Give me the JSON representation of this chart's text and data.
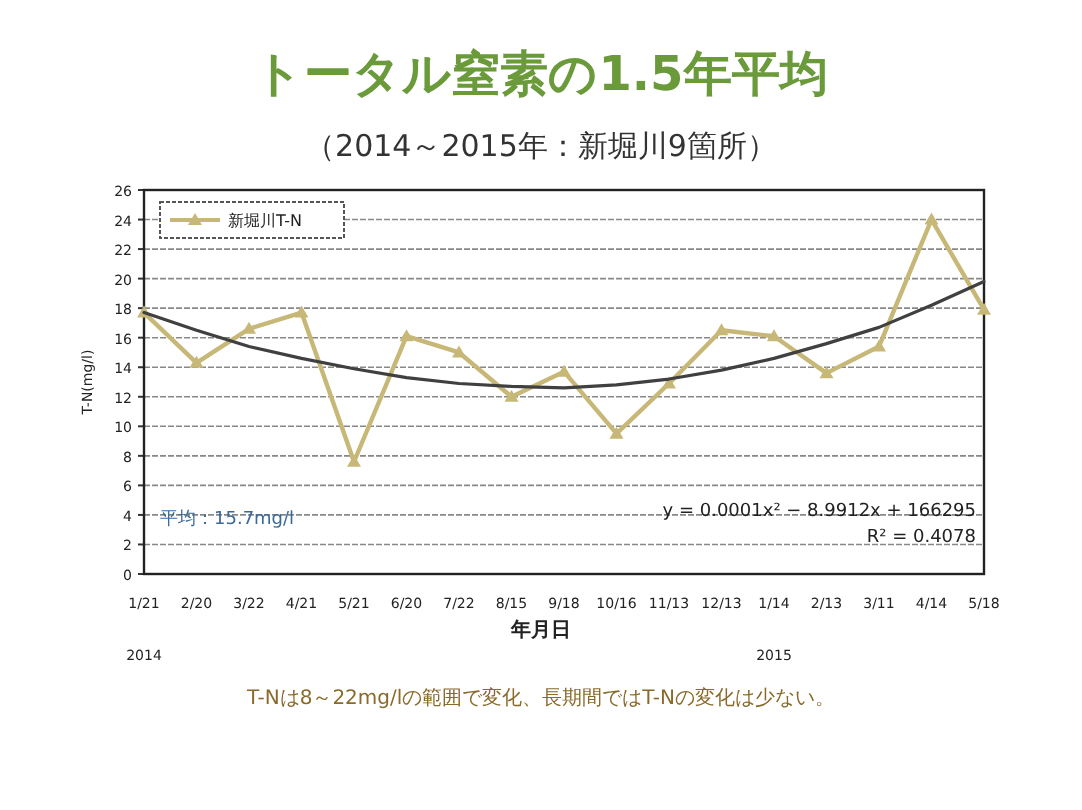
{
  "chart_data": {
    "type": "line",
    "title": "トータル窒素の1.5年平均",
    "subtitle": "（2014～2015年：新堀川9箇所）",
    "xlabel": "年月日",
    "ylabel": "T-N(mg/l)",
    "categories": [
      "1/21",
      "2/20",
      "3/22",
      "4/21",
      "5/21",
      "6/20",
      "7/22",
      "8/15",
      "9/18",
      "10/16",
      "11/13",
      "12/13",
      "1/14",
      "2/13",
      "3/11",
      "4/14",
      "5/18"
    ],
    "series": [
      {
        "name": "新堀川T-N",
        "color": "#c8b878",
        "marker": "triangle",
        "values": [
          17.7,
          14.3,
          16.6,
          17.7,
          7.6,
          16.1,
          15.0,
          12.0,
          13.7,
          9.5,
          12.9,
          16.5,
          16.1,
          13.6,
          15.4,
          24.0,
          17.9
        ]
      },
      {
        "color": "#404040",
        "marker": "none",
        "values": [
          17.7,
          16.5,
          15.4,
          14.6,
          13.9,
          13.3,
          12.9,
          12.7,
          12.6,
          12.8,
          13.2,
          13.8,
          14.6,
          15.6,
          16.7,
          18.2,
          19.8
        ]
      }
    ],
    "ylim": [
      0,
      26
    ],
    "yticks": [
      0,
      2,
      4,
      6,
      8,
      10,
      12,
      14,
      16,
      18,
      20,
      22,
      24,
      26
    ],
    "grid": "y",
    "legend": "top left",
    "annotations": [
      "平均：15.7mg/l",
      "y = 0.0001x² − 8.9912x + 166295",
      "R² = 0.4078",
      "2014",
      "2015",
      "T-Nは8～22mg/lの範囲で変化、長期間ではT-Nの変化は少ない。"
    ]
  }
}
